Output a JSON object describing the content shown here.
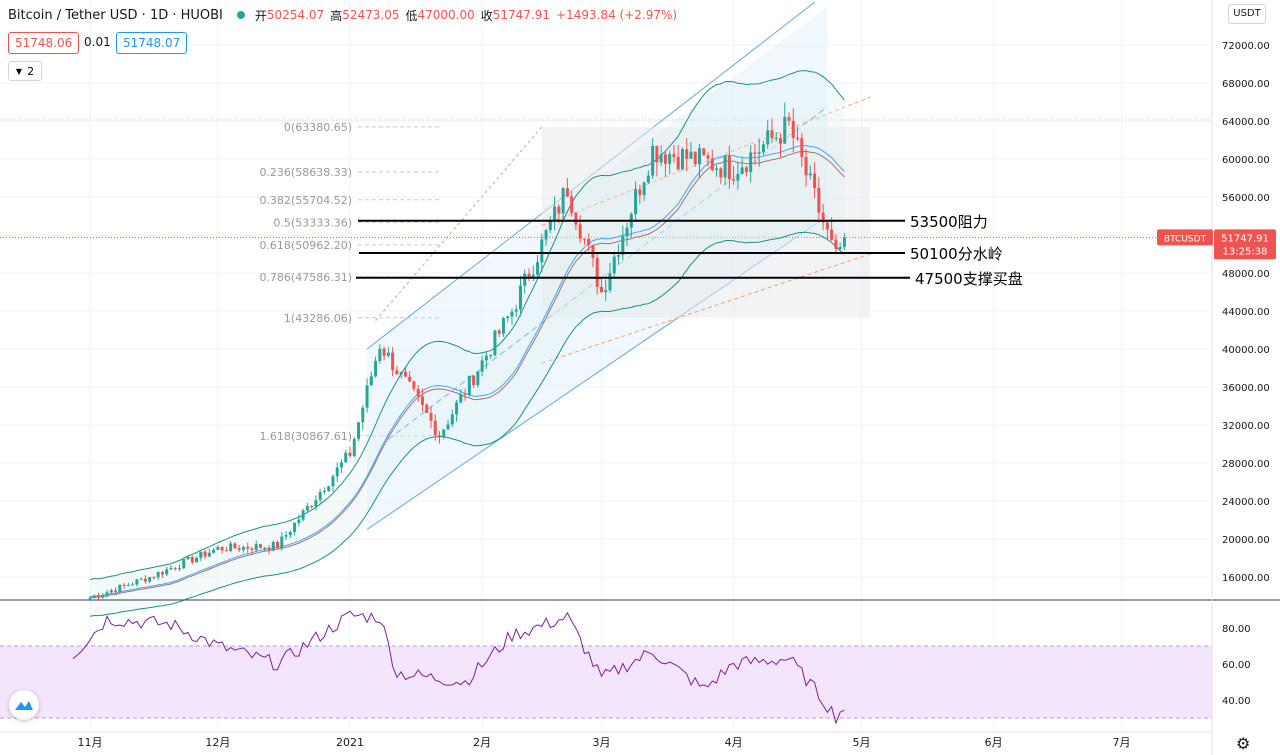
{
  "header": {
    "symbol_title": "Bitcoin / Tether USD · 1D · HUOBI",
    "open_label": "开",
    "open_value": "50254.07",
    "high_label": "高",
    "high_value": "52473.05",
    "low_label": "低",
    "low_value": "47000.00",
    "close_label": "收",
    "close_value": "51747.91",
    "change_value": "+1493.84 (+2.97%)"
  },
  "trade": {
    "sell_price": "51748.06",
    "spread": "0.01",
    "buy_price": "51748.07"
  },
  "indicators_count": "2",
  "currency_button": "USDT",
  "price_tag": {
    "symbol": "BTCUSDT",
    "price": "51747.91",
    "countdown": "13:25:38"
  },
  "colors": {
    "up": "#26a69a",
    "down": "#ef5350",
    "rsi_line": "#7b1fa2",
    "bollinger": "#1f8f84",
    "ma": "#8b2c2c",
    "channel": "#60a8e0",
    "fib_guide": "#f0a070"
  },
  "annotations": [
    {
      "text": "53500阻力",
      "price": 53500
    },
    {
      "text": "50100分水岭",
      "price": 50100
    },
    {
      "text": "47500支撑买盘",
      "price": 47500
    }
  ],
  "fibonacci": [
    {
      "label": "0(63380.65)",
      "price": 63380.65
    },
    {
      "label": "0.236(58638.33)",
      "price": 58638.33
    },
    {
      "label": "0.382(55704.52)",
      "price": 55704.52
    },
    {
      "label": "0.5(53333.36)",
      "price": 53333.36
    },
    {
      "label": "0.618(50962.20)",
      "price": 50962.2
    },
    {
      "label": "0.786(47586.31)",
      "price": 47586.31
    },
    {
      "label": "1(43286.06)",
      "price": 43286.06
    },
    {
      "label": "1.618(30867.61)",
      "price": 30867.61
    }
  ],
  "chart_data": {
    "type": "candlestick",
    "title": "Bitcoin / Tether USD · 1D · HUOBI",
    "y_ticks": [
      "16000.00",
      "20000.00",
      "24000.00",
      "28000.00",
      "32000.00",
      "36000.00",
      "40000.00",
      "44000.00",
      "48000.00",
      "52000.00",
      "56000.00",
      "60000.00",
      "64000.00",
      "68000.00",
      "72000.00"
    ],
    "x_ticks": [
      "11月",
      "12月",
      "2021",
      "2月",
      "3月",
      "4月",
      "5月",
      "6月",
      "7月"
    ],
    "ylim": [
      14000,
      76000
    ],
    "series": [
      {
        "name": "close",
        "x": [
          "2020-11-01",
          "2020-11-15",
          "2020-12-01",
          "2020-12-15",
          "2021-01-01",
          "2021-01-08",
          "2021-01-22",
          "2021-02-08",
          "2021-02-21",
          "2021-03-01",
          "2021-03-13",
          "2021-04-01",
          "2021-04-14",
          "2021-04-25",
          "2021-04-27"
        ],
        "values": [
          13800,
          16000,
          19000,
          19300,
          29000,
          40500,
          31000,
          44000,
          57000,
          46000,
          61000,
          59000,
          63500,
          49500,
          51747.91
        ]
      }
    ],
    "rsi": {
      "y_ticks": [
        "40.00",
        "60.00",
        "80.00"
      ],
      "ylim": [
        25,
        95
      ],
      "band": [
        30,
        70
      ],
      "x": [
        "2020-10-28",
        "2020-11-05",
        "2020-11-20",
        "2020-12-01",
        "2020-12-15",
        "2021-01-01",
        "2021-01-08",
        "2021-01-12",
        "2021-01-28",
        "2021-02-08",
        "2021-02-21",
        "2021-03-01",
        "2021-03-13",
        "2021-03-25",
        "2021-04-01",
        "2021-04-14",
        "2021-04-20",
        "2021-04-25",
        "2021-04-27"
      ],
      "values": [
        65,
        85,
        82,
        70,
        60,
        87,
        86,
        55,
        50,
        76,
        86,
        52,
        67,
        46,
        60,
        63,
        46,
        31,
        36
      ]
    }
  }
}
